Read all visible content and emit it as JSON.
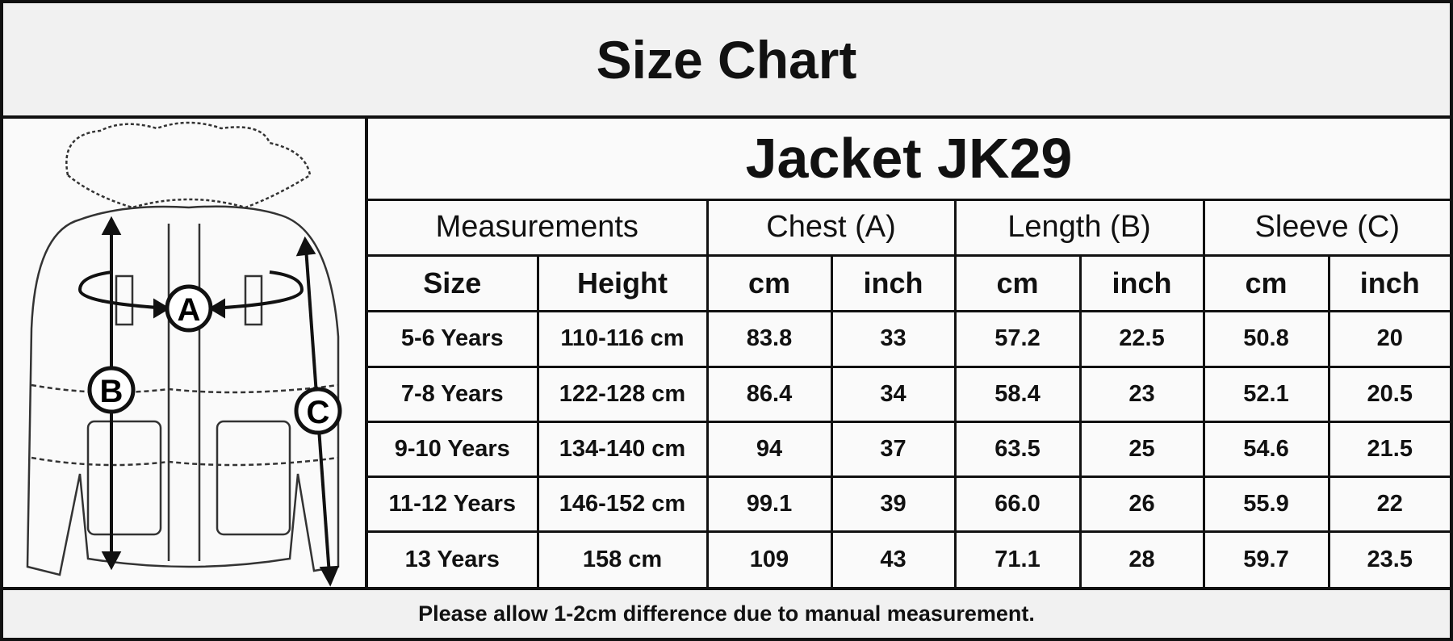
{
  "header": {
    "title": "Size Chart"
  },
  "diagram": {
    "labels": [
      "A",
      "B",
      "C"
    ]
  },
  "table": {
    "title": "Jacket JK29",
    "group_headers": [
      "Measurements",
      "Chest (A)",
      "Length (B)",
      "Sleeve (C)"
    ],
    "column_headers": [
      "Size",
      "Height",
      "cm",
      "inch",
      "cm",
      "inch",
      "cm",
      "inch"
    ],
    "rows": [
      [
        "5-6 Years",
        "110-116 cm",
        "83.8",
        "33",
        "57.2",
        "22.5",
        "50.8",
        "20"
      ],
      [
        "7-8 Years",
        "122-128 cm",
        "86.4",
        "34",
        "58.4",
        "23",
        "52.1",
        "20.5"
      ],
      [
        "9-10 Years",
        "134-140 cm",
        "94",
        "37",
        "63.5",
        "25",
        "54.6",
        "21.5"
      ],
      [
        "11-12 Years",
        "146-152 cm",
        "99.1",
        "39",
        "66.0",
        "26",
        "55.9",
        "22"
      ],
      [
        "13 Years",
        "158 cm",
        "109",
        "43",
        "71.1",
        "28",
        "59.7",
        "23.5"
      ]
    ]
  },
  "footer": {
    "note": "Please allow 1-2cm difference due to manual measurement."
  }
}
